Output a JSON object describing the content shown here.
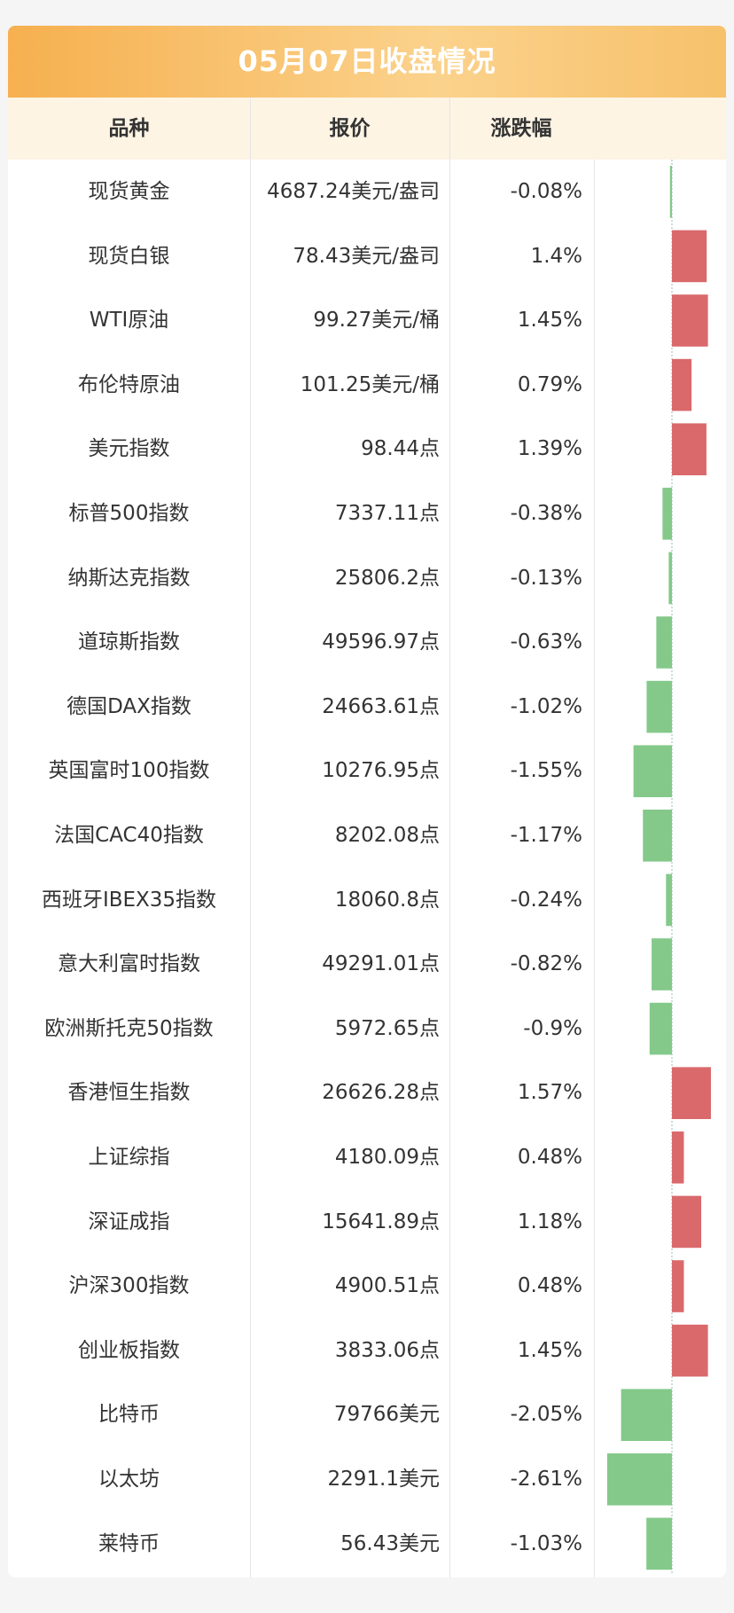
{
  "header": {
    "title": "05月07日收盘情况"
  },
  "table": {
    "columns": [
      "品种",
      "报价",
      "涨跌幅"
    ],
    "rows": [
      {
        "name": "现货黄金",
        "price": "4687.24美元/盎司",
        "change": {
          "value": -0.08,
          "label": "-0.08%"
        }
      },
      {
        "name": "现货白银",
        "price": "78.43美元/盎司",
        "change": {
          "value": 1.4,
          "label": "1.4%"
        }
      },
      {
        "name": "WTI原油",
        "price": "99.27美元/桶",
        "change": {
          "value": 1.45,
          "label": "1.45%"
        }
      },
      {
        "name": "布伦特原油",
        "price": "101.25美元/桶",
        "change": {
          "value": 0.79,
          "label": "0.79%"
        }
      },
      {
        "name": "美元指数",
        "price": "98.44点",
        "change": {
          "value": 1.39,
          "label": "1.39%"
        }
      },
      {
        "name": "标普500指数",
        "price": "7337.11点",
        "change": {
          "value": -0.38,
          "label": "-0.38%"
        }
      },
      {
        "name": "纳斯达克指数",
        "price": "25806.2点",
        "change": {
          "value": -0.13,
          "label": "-0.13%"
        }
      },
      {
        "name": "道琼斯指数",
        "price": "49596.97点",
        "change": {
          "value": -0.63,
          "label": "-0.63%"
        }
      },
      {
        "name": "德国DAX指数",
        "price": "24663.61点",
        "change": {
          "value": -1.02,
          "label": "-1.02%"
        }
      },
      {
        "name": "英国富时100指数",
        "price": "10276.95点",
        "change": {
          "value": -1.55,
          "label": "-1.55%"
        }
      },
      {
        "name": "法国CAC40指数",
        "price": "8202.08点",
        "change": {
          "value": -1.17,
          "label": "-1.17%"
        }
      },
      {
        "name": "西班牙IBEX35指数",
        "price": "18060.8点",
        "change": {
          "value": -0.24,
          "label": "-0.24%"
        }
      },
      {
        "name": "意大利富时指数",
        "price": "49291.01点",
        "change": {
          "value": -0.82,
          "label": "-0.82%"
        }
      },
      {
        "name": "欧洲斯托克50指数",
        "price": "5972.65点",
        "change": {
          "value": -0.9,
          "label": "-0.9%"
        }
      },
      {
        "name": "香港恒生指数",
        "price": "26626.28点",
        "change": {
          "value": 1.57,
          "label": "1.57%"
        }
      },
      {
        "name": "上证综指",
        "price": "4180.09点",
        "change": {
          "value": 0.48,
          "label": "0.48%"
        }
      },
      {
        "name": "深证成指",
        "price": "15641.89点",
        "change": {
          "value": 1.18,
          "label": "1.18%"
        }
      },
      {
        "name": "沪深300指数",
        "price": "4900.51点",
        "change": {
          "value": 0.48,
          "label": "0.48%"
        }
      },
      {
        "name": "创业板指数",
        "price": "3833.06点",
        "change": {
          "value": 1.45,
          "label": "1.45%"
        }
      },
      {
        "name": "比特币",
        "price": "79766美元",
        "change": {
          "value": -2.05,
          "label": "-2.05%"
        }
      },
      {
        "name": "以太坊",
        "price": "2291.1美元",
        "change": {
          "value": -2.61,
          "label": "-2.61%"
        }
      },
      {
        "name": "莱特币",
        "price": "56.43美元",
        "change": {
          "value": -1.03,
          "label": "-1.03%"
        }
      }
    ]
  }
}
